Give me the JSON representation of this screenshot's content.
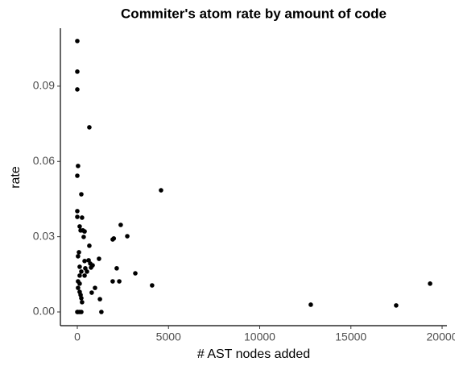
{
  "chart_data": {
    "type": "scatter",
    "title": "Commiter's atom rate by amount of code",
    "x_label": "# AST nodes added",
    "y_label": "rate",
    "color": "#000000",
    "xlim": [
      -927,
      20265
    ],
    "xticks": [
      0,
      5000,
      10000,
      15000,
      20000
    ],
    "ylim": [
      -0.00546,
      0.1131
    ],
    "yticks": [
      {
        "value": 0,
        "label": "0.00"
      },
      {
        "value": 0.03,
        "label": "0.03"
      },
      {
        "value": 0.06,
        "label": "0.06"
      },
      {
        "value": 0.09,
        "label": "0.09"
      }
    ],
    "x": [
      0,
      0,
      0,
      660,
      40,
      0,
      220,
      4590,
      0,
      0,
      260,
      130,
      180,
      310,
      400,
      350,
      2380,
      2740,
      1940,
      2000,
      660,
      90,
      40,
      1190,
      400,
      620,
      710,
      840,
      130,
      440,
      750,
      2160,
      220,
      530,
      130,
      400,
      3180,
      40,
      130,
      1940,
      2300,
      4100,
      19340,
      970,
      40,
      790,
      130,
      180,
      220,
      1240,
      260,
      12800,
      17480,
      1320,
      0,
      40,
      130,
      220
    ],
    "values": [
      0.108,
      0.0958,
      0.0887,
      0.0736,
      0.0582,
      0.0543,
      0.0469,
      0.0485,
      0.0402,
      0.0379,
      0.0376,
      0.0341,
      0.0325,
      0.0325,
      0.0321,
      0.0299,
      0.0347,
      0.0302,
      0.0289,
      0.0293,
      0.0264,
      0.0238,
      0.0222,
      0.0212,
      0.0203,
      0.0206,
      0.0193,
      0.0186,
      0.018,
      0.0174,
      0.0177,
      0.0174,
      0.0161,
      0.0161,
      0.0145,
      0.0145,
      0.0154,
      0.0122,
      0.0113,
      0.0122,
      0.0122,
      0.0106,
      0.0113,
      0.0096,
      0.0096,
      0.0077,
      0.008,
      0.0068,
      0.0055,
      0.0051,
      0.0039,
      0.0029,
      0.0026,
      0,
      0,
      0,
      0,
      0
    ]
  }
}
